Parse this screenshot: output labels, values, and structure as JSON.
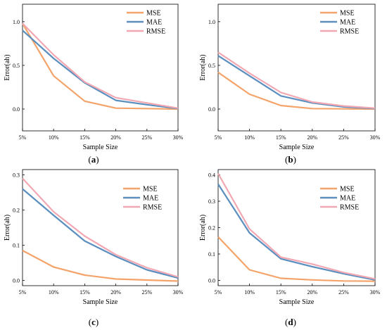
{
  "colors": {
    "MSE": "#f4a46a",
    "MAE": "#5b8fbf",
    "RMSE": "#f2a8b3",
    "axis": "#000000"
  },
  "chart_data": [
    {
      "type": "line",
      "caption": "a",
      "xlabel": "Sample Size",
      "ylabel": "Error(ah)",
      "categories": [
        "5%",
        "10%",
        "15%",
        "20%",
        "25%",
        "30%"
      ],
      "ylim": [
        -0.25,
        1.2
      ],
      "yticks": [
        "0.0",
        "0.5",
        "1.0"
      ],
      "ytick_values": [
        0,
        0.5,
        1.0
      ],
      "legend": "top-right",
      "series": [
        {
          "name": "MSE",
          "values": [
            0.98,
            0.38,
            0.09,
            0.01,
            0.005,
            0.0
          ]
        },
        {
          "name": "MAE",
          "values": [
            0.9,
            0.58,
            0.3,
            0.1,
            0.05,
            0.005
          ]
        },
        {
          "name": "RMSE",
          "values": [
            0.98,
            0.62,
            0.31,
            0.13,
            0.07,
            0.01
          ]
        }
      ]
    },
    {
      "type": "line",
      "caption": "b",
      "xlabel": "Sample Size",
      "ylabel": "Error(ah)",
      "categories": [
        "5%",
        "10%",
        "15%",
        "20%",
        "25%",
        "30%"
      ],
      "ylim": [
        -0.25,
        1.2
      ],
      "yticks": [
        "0.0",
        "0.5",
        "1.0"
      ],
      "ytick_values": [
        0,
        0.5,
        1.0
      ],
      "legend": "top-right",
      "series": [
        {
          "name": "MSE",
          "values": [
            0.42,
            0.17,
            0.04,
            0.005,
            0.002,
            0.0
          ]
        },
        {
          "name": "MAE",
          "values": [
            0.61,
            0.38,
            0.15,
            0.07,
            0.025,
            0.005
          ]
        },
        {
          "name": "RMSE",
          "values": [
            0.65,
            0.41,
            0.19,
            0.08,
            0.035,
            0.01
          ]
        }
      ]
    },
    {
      "type": "line",
      "caption": "c",
      "xlabel": "Sample Size",
      "ylabel": "Error(ah)",
      "categories": [
        "5%",
        "10%",
        "15%",
        "20%",
        "25%",
        "30%"
      ],
      "ylim": [
        -0.015,
        0.315
      ],
      "yticks": [
        "0.0",
        "0.1",
        "0.2",
        "0.3"
      ],
      "ytick_values": [
        0,
        0.1,
        0.2,
        0.3
      ],
      "legend": "top-right",
      "series": [
        {
          "name": "MSE",
          "values": [
            0.085,
            0.038,
            0.015,
            0.004,
            0.001,
            -0.002
          ]
        },
        {
          "name": "MAE",
          "values": [
            0.26,
            0.185,
            0.112,
            0.068,
            0.03,
            0.007
          ]
        },
        {
          "name": "RMSE",
          "values": [
            0.29,
            0.195,
            0.126,
            0.073,
            0.036,
            0.01
          ]
        }
      ]
    },
    {
      "type": "line",
      "caption": "d",
      "xlabel": "Sample Size",
      "ylabel": "Error(ah)",
      "categories": [
        "5%",
        "10%",
        "15%",
        "20%",
        "25%",
        "30%"
      ],
      "ylim": [
        -0.02,
        0.42
      ],
      "yticks": [
        "0.0",
        "0.1",
        "0.2",
        "0.3",
        "0.4"
      ],
      "ytick_values": [
        0,
        0.1,
        0.2,
        0.3,
        0.4
      ],
      "legend": "top-right",
      "series": [
        {
          "name": "MSE",
          "values": [
            0.165,
            0.04,
            0.008,
            0.002,
            -0.002,
            -0.003
          ]
        },
        {
          "name": "MAE",
          "values": [
            0.365,
            0.18,
            0.082,
            0.052,
            0.025,
            0.002
          ]
        },
        {
          "name": "RMSE",
          "values": [
            0.405,
            0.195,
            0.088,
            0.062,
            0.03,
            0.006
          ]
        }
      ]
    }
  ]
}
